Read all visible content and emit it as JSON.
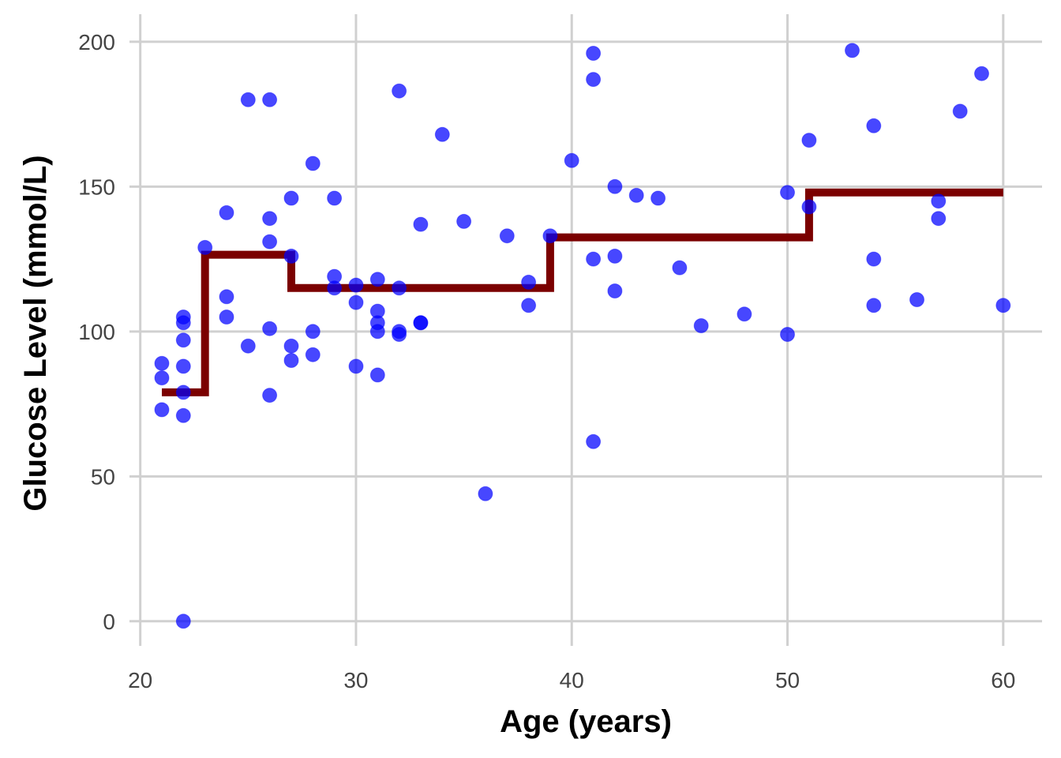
{
  "chart_data": {
    "type": "scatter",
    "title": "",
    "xlabel": "Age (years)",
    "ylabel": "Glucose Level (mmol/L)",
    "xlim": [
      19.5,
      61.8
    ],
    "ylim": [
      -8.5,
      209.5
    ],
    "x_ticks": [
      20,
      30,
      40,
      50,
      60
    ],
    "y_ticks": [
      0,
      50,
      100,
      150,
      200
    ],
    "grid": true,
    "legend": "none",
    "colors": {
      "points": "#0000ff",
      "step_line": "#7b0000",
      "grid": "#d0d0d0"
    },
    "series": [
      {
        "type": "scatter",
        "points": [
          [
            21,
            89
          ],
          [
            21,
            84
          ],
          [
            21,
            73
          ],
          [
            22,
            105
          ],
          [
            22,
            103
          ],
          [
            22,
            97
          ],
          [
            22,
            88
          ],
          [
            22,
            79
          ],
          [
            22,
            71
          ],
          [
            22,
            0
          ],
          [
            23,
            129
          ],
          [
            24,
            141
          ],
          [
            24,
            112
          ],
          [
            24,
            105
          ],
          [
            25,
            180
          ],
          [
            25,
            95
          ],
          [
            26,
            180
          ],
          [
            26,
            139
          ],
          [
            26,
            131
          ],
          [
            26,
            101
          ],
          [
            26,
            78
          ],
          [
            27,
            146
          ],
          [
            27,
            126
          ],
          [
            27,
            95
          ],
          [
            27,
            90
          ],
          [
            28,
            158
          ],
          [
            28,
            100
          ],
          [
            28,
            92
          ],
          [
            29,
            146
          ],
          [
            29,
            119
          ],
          [
            29,
            115
          ],
          [
            30,
            116
          ],
          [
            30,
            110
          ],
          [
            30,
            88
          ],
          [
            31,
            118
          ],
          [
            31,
            107
          ],
          [
            31,
            103
          ],
          [
            31,
            100
          ],
          [
            31,
            85
          ],
          [
            32,
            183
          ],
          [
            32,
            115
          ],
          [
            32,
            100
          ],
          [
            32,
            99
          ],
          [
            33,
            137
          ],
          [
            33,
            103
          ],
          [
            33,
            103
          ],
          [
            34,
            168
          ],
          [
            35,
            138
          ],
          [
            36,
            44
          ],
          [
            37,
            133
          ],
          [
            38,
            117
          ],
          [
            38,
            109
          ],
          [
            39,
            133
          ],
          [
            40,
            159
          ],
          [
            41,
            196
          ],
          [
            41,
            187
          ],
          [
            41,
            125
          ],
          [
            41,
            62
          ],
          [
            42,
            150
          ],
          [
            42,
            126
          ],
          [
            42,
            114
          ],
          [
            43,
            147
          ],
          [
            44,
            146
          ],
          [
            45,
            122
          ],
          [
            46,
            102
          ],
          [
            48,
            106
          ],
          [
            50,
            148
          ],
          [
            50,
            99
          ],
          [
            51,
            166
          ],
          [
            51,
            143
          ],
          [
            53,
            197
          ],
          [
            54,
            171
          ],
          [
            54,
            125
          ],
          [
            54,
            109
          ],
          [
            56,
            111
          ],
          [
            57,
            145
          ],
          [
            57,
            139
          ],
          [
            58,
            176
          ],
          [
            59,
            189
          ],
          [
            60,
            109
          ]
        ]
      },
      {
        "type": "step",
        "points": [
          [
            21,
            79
          ],
          [
            23,
            79
          ],
          [
            23,
            126.5
          ],
          [
            27,
            126.5
          ],
          [
            27,
            115
          ],
          [
            39,
            115
          ],
          [
            39,
            132.5
          ],
          [
            51,
            132.5
          ],
          [
            51,
            148
          ],
          [
            60,
            148
          ]
        ]
      }
    ]
  }
}
